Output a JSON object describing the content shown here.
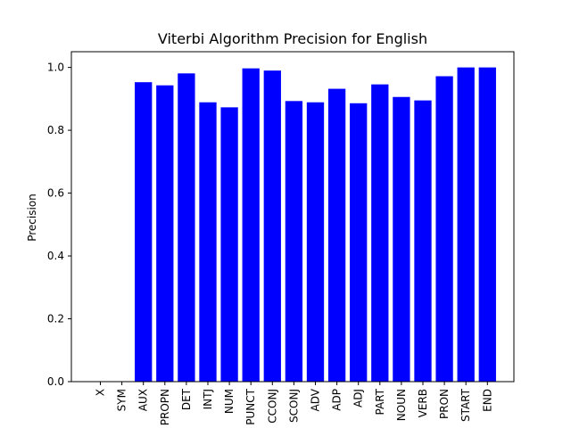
{
  "chart_data": {
    "type": "bar",
    "title": "Viterbi Algorithm Precision for English",
    "xlabel": "",
    "ylabel": "Precision",
    "categories": [
      "X",
      "SYM",
      "AUX",
      "PROPN",
      "DET",
      "INTJ",
      "NUM",
      "PUNCT",
      "CCONJ",
      "SCONJ",
      "ADV",
      "ADP",
      "ADJ",
      "PART",
      "NOUN",
      "VERB",
      "PRON",
      "START",
      "END"
    ],
    "values": [
      0.0,
      0.0,
      0.953,
      0.943,
      0.981,
      0.889,
      0.873,
      0.997,
      0.99,
      0.893,
      0.889,
      0.932,
      0.886,
      0.946,
      0.906,
      0.895,
      0.972,
      1.0,
      1.0
    ],
    "ylim": [
      0,
      1.05
    ],
    "yticks": [
      0.0,
      0.2,
      0.4,
      0.6,
      0.8,
      1.0
    ],
    "ytick_labels": [
      "0.0",
      "0.2",
      "0.4",
      "0.6",
      "0.8",
      "1.0"
    ],
    "bar_color": "#0000ff",
    "grid": false,
    "legend": "none"
  }
}
